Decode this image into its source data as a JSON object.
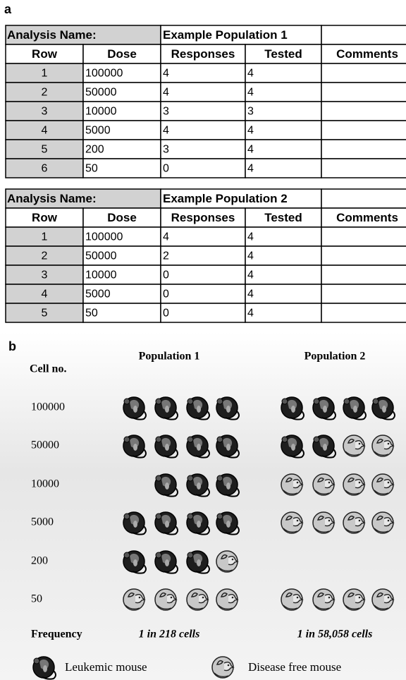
{
  "panel_a": {
    "label": "a",
    "tables": [
      {
        "name_label": "Analysis Name:",
        "name": "Example Population 1",
        "columns": [
          "Row",
          "Dose",
          "Responses",
          "Tested",
          "Comments"
        ],
        "rows": [
          [
            1,
            100000,
            4,
            4
          ],
          [
            2,
            50000,
            4,
            4
          ],
          [
            3,
            10000,
            3,
            3
          ],
          [
            4,
            5000,
            4,
            4
          ],
          [
            5,
            200,
            3,
            4
          ],
          [
            6,
            50,
            0,
            4
          ]
        ]
      },
      {
        "name_label": "Analysis Name:",
        "name": "Example Population 2",
        "columns": [
          "Row",
          "Dose",
          "Responses",
          "Tested",
          "Comments"
        ],
        "rows": [
          [
            1,
            100000,
            4,
            4
          ],
          [
            2,
            50000,
            2,
            4
          ],
          [
            3,
            10000,
            0,
            4
          ],
          [
            4,
            5000,
            0,
            4
          ],
          [
            5,
            50,
            0,
            4
          ]
        ]
      }
    ]
  },
  "panel_b": {
    "label": "b",
    "cell_no_label": "Cell no.",
    "populations": [
      "Population 1",
      "Population 2"
    ],
    "cell_nos": [
      100000,
      50000,
      10000,
      5000,
      200,
      50
    ],
    "frequency_label": "Frequency",
    "frequencies": [
      "1 in 218 cells",
      "1 in 58,058 cells"
    ],
    "legend": [
      "Leukemic mouse",
      "Disease free mouse"
    ]
  }
}
